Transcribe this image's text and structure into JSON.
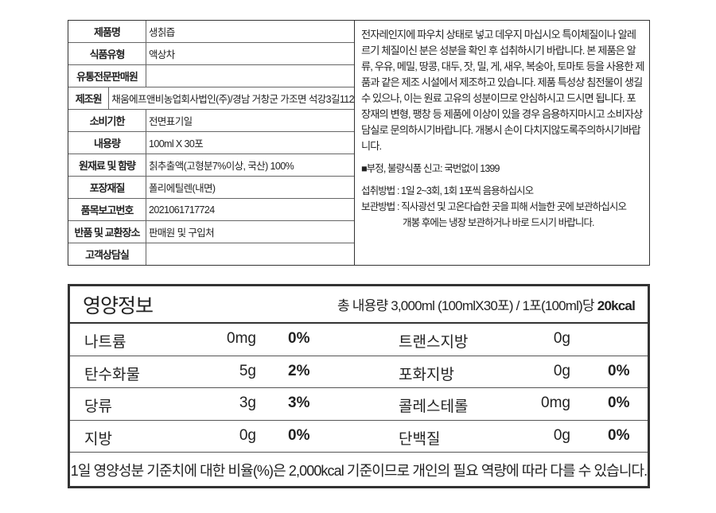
{
  "product_info": [
    {
      "label": "제품명",
      "value": "생칡즙"
    },
    {
      "label": "식품유형",
      "value": "액상차"
    },
    {
      "label": "유통전문판매원",
      "value": ""
    },
    {
      "label": "제조원",
      "value": "채움에프앤비농업회사법인(주)/경남 거창군 가조면 석강3길112"
    },
    {
      "label": "소비기한",
      "value": "전면표기일"
    },
    {
      "label": "내용량",
      "value": "100ml X 30포"
    },
    {
      "label": "원재료 및 함량",
      "value": "칡추출액(고형분7%이상, 국산) 100%"
    },
    {
      "label": "포장재질",
      "value": "폴리에틸렌(내면)"
    },
    {
      "label": "품목보고번호",
      "value": "2021061717724"
    },
    {
      "label": "반품 및 교환장소",
      "value": "판매원 및 구입처"
    },
    {
      "label": "고객상담실",
      "value": ""
    }
  ],
  "notes": {
    "caution": "전자레인지에 파우치 상태로 넣고 데우지 마십시오 특이체질이나 알레르기 체질이신 분은 성분을 확인 후 섭취하시기 바랍니다. 본 제품은 알류, 우유, 메밀, 땅콩, 대두, 잣, 밀, 게, 새우, 복숭아, 토마토 등을 사용한 제품과 같은 제조 시설에서 제조하고 있습니다. 제품 특성상 침전물이 생길 수 있으나, 이는 원료 고유의 성분이므로 안심하시고 드시면 됩니다. 포장재의 변형, 팽창 등 제품에 이상이 있을 경우 음용하지마시고 소비자상담실로 문의하시기바랍니다. 개봉시 손이 다치지않도록주의하시기바랍니다.",
    "report": "■부정, 불량식품 신고: 국번없이 1399",
    "intake": "섭취방법 : 1일 2~3회, 1회 1포씩 음용하십시오",
    "storage": "보관방법 : 직사광선 및 고온다습한 곳을 피해 서늘한 곳에 보관하십시오",
    "storage2": "개봉 후에는 냉장 보관하거나 바로 드시기 바랍니다."
  },
  "nutrition": {
    "title": "영양정보",
    "serving": "총 내용량 3,000ml (100mlX30포) / 1포(100ml)당",
    "calories": "20kcal",
    "rows": [
      {
        "n1": "나트륨",
        "a1": "0mg",
        "p1": "0%",
        "n2": "트랜스지방",
        "a2": "0g",
        "p2": ""
      },
      {
        "n1": "탄수화물",
        "a1": "5g",
        "p1": "2%",
        "n2": "포화지방",
        "a2": "0g",
        "p2": "0%"
      },
      {
        "n1": "당류",
        "a1": "3g",
        "p1": "3%",
        "n2": "콜레스테롤",
        "a2": "0mg",
        "p2": "0%"
      },
      {
        "n1": "지방",
        "a1": "0g",
        "p1": "0%",
        "n2": "단백질",
        "a2": "0g",
        "p2": "0%"
      }
    ],
    "footer": "1일 영양성분 기준치에 대한 비율(%)은 2,000kcal 기준이므로 개인의 필요 역량에 따라 다를 수 있습니다."
  }
}
